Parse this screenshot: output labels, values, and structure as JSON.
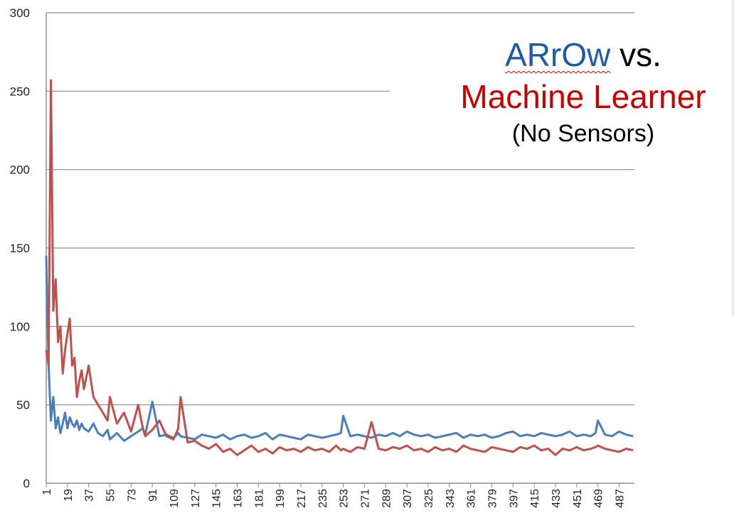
{
  "title": {
    "word1": "ARrOw",
    "word2": "vs.",
    "line2": "Machine Learner",
    "line3": "(No Sensors)",
    "colors": {
      "arrow": "#1f5aa8",
      "learner": "#cc0000"
    }
  },
  "chart_data": {
    "type": "line",
    "ylim": [
      0,
      300
    ],
    "yticks": [
      0,
      50,
      100,
      150,
      200,
      250,
      300
    ],
    "xlim": [
      1,
      500
    ],
    "xticks": [
      1,
      19,
      37,
      55,
      73,
      91,
      109,
      127,
      145,
      163,
      181,
      199,
      217,
      235,
      253,
      271,
      289,
      307,
      325,
      343,
      361,
      379,
      397,
      415,
      433,
      451,
      469,
      487
    ],
    "grid": true,
    "x": [
      1,
      3,
      5,
      7,
      9,
      11,
      13,
      15,
      17,
      19,
      21,
      23,
      25,
      27,
      29,
      31,
      33,
      37,
      41,
      45,
      49,
      53,
      55,
      61,
      67,
      73,
      79,
      83,
      85,
      91,
      97,
      103,
      109,
      113,
      115,
      121,
      127,
      133,
      139,
      145,
      151,
      157,
      163,
      169,
      175,
      181,
      187,
      193,
      199,
      205,
      211,
      217,
      223,
      229,
      235,
      241,
      247,
      251,
      253,
      259,
      265,
      271,
      277,
      283,
      289,
      295,
      301,
      307,
      313,
      319,
      325,
      331,
      337,
      343,
      349,
      355,
      361,
      367,
      373,
      379,
      385,
      391,
      397,
      403,
      409,
      415,
      421,
      427,
      433,
      439,
      445,
      451,
      457,
      463,
      467,
      469,
      475,
      481,
      487,
      493,
      499
    ],
    "series": [
      {
        "color": "#4a7ebb",
        "values": [
          145,
          75,
          40,
          55,
          35,
          42,
          32,
          38,
          45,
          35,
          42,
          38,
          36,
          40,
          34,
          38,
          35,
          33,
          38,
          32,
          30,
          34,
          28,
          32,
          27,
          30,
          33,
          35,
          31,
          52,
          30,
          31,
          29,
          32,
          30,
          29,
          28,
          31,
          30,
          29,
          31,
          28,
          30,
          31,
          29,
          30,
          32,
          28,
          31,
          30,
          29,
          28,
          31,
          30,
          29,
          30,
          31,
          32,
          43,
          30,
          31,
          30,
          29,
          31,
          30,
          32,
          30,
          33,
          31,
          30,
          31,
          29,
          30,
          31,
          32,
          29,
          31,
          30,
          31,
          29,
          30,
          32,
          33,
          30,
          31,
          30,
          32,
          31,
          30,
          31,
          33,
          30,
          31,
          30,
          32,
          40,
          31,
          30,
          33,
          31,
          30
        ]
      },
      {
        "color": "#c0504d",
        "values": [
          85,
          75,
          257,
          110,
          130,
          90,
          100,
          70,
          85,
          95,
          105,
          75,
          80,
          55,
          65,
          72,
          60,
          75,
          55,
          50,
          45,
          40,
          55,
          38,
          45,
          33,
          50,
          35,
          30,
          34,
          40,
          30,
          28,
          35,
          55,
          26,
          27,
          24,
          22,
          25,
          20,
          22,
          18,
          21,
          24,
          20,
          22,
          19,
          23,
          21,
          22,
          20,
          23,
          21,
          22,
          20,
          24,
          21,
          22,
          20,
          23,
          22,
          39,
          22,
          21,
          23,
          22,
          24,
          21,
          22,
          20,
          23,
          21,
          22,
          20,
          24,
          22,
          21,
          20,
          23,
          22,
          21,
          20,
          23,
          22,
          24,
          21,
          22,
          18,
          22,
          21,
          23,
          21,
          22,
          23,
          24,
          22,
          21,
          20,
          22,
          21
        ]
      }
    ]
  }
}
